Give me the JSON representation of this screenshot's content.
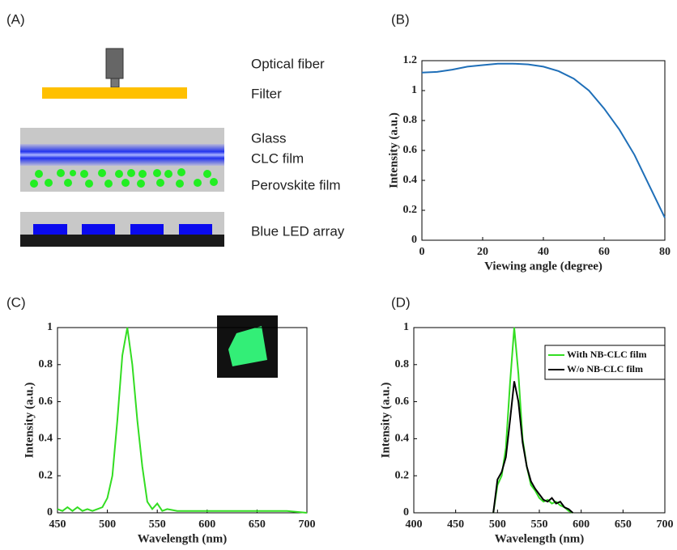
{
  "diagram": {
    "panel_label": "(A)",
    "labels": [
      "Optical fiber",
      "Filter",
      "Glass",
      "CLC film",
      "Perovskite film",
      "Blue LED array"
    ]
  },
  "chart_data": [
    {
      "type": "line",
      "panel_label": "(B)",
      "xlabel": "Viewing angle (degree)",
      "ylabel": "Intensity (a.u.)",
      "x": [
        0,
        5,
        10,
        15,
        20,
        25,
        30,
        35,
        40,
        45,
        50,
        55,
        60,
        65,
        70,
        75,
        80
      ],
      "series": [
        {
          "color": "#1f6fb8",
          "values": [
            1.12,
            1.125,
            1.14,
            1.16,
            1.17,
            1.18,
            1.18,
            1.175,
            1.16,
            1.13,
            1.08,
            1.0,
            0.88,
            0.74,
            0.57,
            0.36,
            0.15
          ]
        }
      ],
      "xlim": [
        0,
        80
      ],
      "xticks": [
        0,
        20,
        40,
        60,
        80
      ],
      "ylim": [
        0,
        1.2
      ],
      "yticks": [
        0,
        0.2,
        0.4,
        0.6,
        0.8,
        1,
        1.2
      ]
    },
    {
      "type": "line",
      "panel_label": "(C)",
      "xlabel": "Wavelength (nm)",
      "ylabel": "Intensity (a.u.)",
      "x": [
        450,
        455,
        460,
        465,
        470,
        475,
        480,
        485,
        490,
        495,
        500,
        505,
        510,
        515,
        520,
        525,
        530,
        535,
        540,
        545,
        550,
        555,
        560,
        570,
        580,
        600,
        620,
        640,
        660,
        680,
        700
      ],
      "series": [
        {
          "color": "#33dd22",
          "values": [
            0.02,
            0.01,
            0.03,
            0.01,
            0.03,
            0.01,
            0.02,
            0.01,
            0.02,
            0.03,
            0.08,
            0.2,
            0.5,
            0.85,
            1.0,
            0.8,
            0.5,
            0.25,
            0.06,
            0.02,
            0.05,
            0.01,
            0.02,
            0.01,
            0.01,
            0.01,
            0.01,
            0.01,
            0.01,
            0.01,
            0.0
          ]
        }
      ],
      "xlim": [
        450,
        700
      ],
      "xticks": [
        450,
        500,
        550,
        600,
        650,
        700
      ],
      "ylim": [
        0,
        1
      ],
      "yticks": [
        0,
        0.2,
        0.4,
        0.6,
        0.8,
        1
      ]
    },
    {
      "type": "line",
      "panel_label": "(D)",
      "xlabel": "Wavelength (nm)",
      "ylabel": "Intensity (a.u.)",
      "x": [
        495,
        500,
        505,
        510,
        515,
        520,
        525,
        530,
        535,
        540,
        545,
        550,
        555,
        560,
        565,
        570,
        575,
        580,
        585,
        590
      ],
      "series": [
        {
          "name": "With NB-CLC film",
          "color": "#33dd22",
          "values": [
            0,
            0.15,
            0.2,
            0.35,
            0.7,
            1.0,
            0.75,
            0.4,
            0.25,
            0.15,
            0.12,
            0.08,
            0.06,
            0.07,
            0.05,
            0.06,
            0.04,
            0.03,
            0.01,
            0
          ]
        },
        {
          "name": "W/o NB-CLC film",
          "color": "#000000",
          "values": [
            0,
            0.18,
            0.22,
            0.3,
            0.5,
            0.71,
            0.6,
            0.38,
            0.25,
            0.17,
            0.13,
            0.1,
            0.07,
            0.06,
            0.08,
            0.05,
            0.06,
            0.03,
            0.02,
            0
          ]
        }
      ],
      "xlim": [
        400,
        700
      ],
      "xticks": [
        400,
        450,
        500,
        550,
        600,
        650,
        700
      ],
      "ylim": [
        0,
        1
      ],
      "yticks": [
        0,
        0.2,
        0.4,
        0.6,
        0.8,
        1
      ],
      "legend": "upper right"
    }
  ]
}
